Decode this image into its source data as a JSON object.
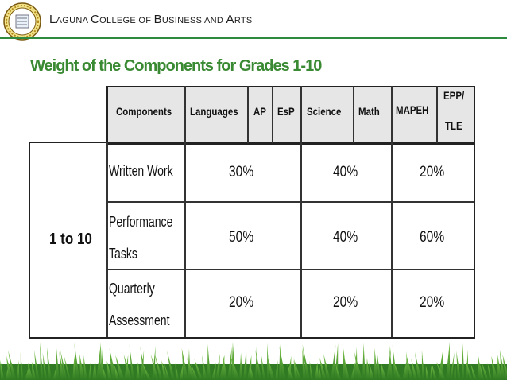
{
  "header": {
    "org_name_parts": [
      {
        "cap": "L",
        "rest": "AGUNA "
      },
      {
        "cap": "C",
        "rest": "OLLEGE OF "
      },
      {
        "cap": "B",
        "rest": "USINESS AND "
      },
      {
        "cap": "A",
        "rest": "RTS"
      }
    ],
    "logo_icon": "school-seal-icon"
  },
  "slide": {
    "title": "Weight of the Components for Grades 1-10"
  },
  "table": {
    "header": {
      "components": "Components",
      "languages": "Languages",
      "ap": "AP",
      "esp": "EsP",
      "science": "Science",
      "math": "Math",
      "mapeh": "MAPEH",
      "epp_line1": "EPP/",
      "epp_line2": "TLE"
    },
    "grade_label": "1 to 10",
    "rows": [
      {
        "label_line1": "Written Work",
        "label_line2": "",
        "group1": "30%",
        "group2": "40%",
        "group3": "20%"
      },
      {
        "label_line1": "Performance",
        "label_line2": "Tasks",
        "group1": "50%",
        "group2": "40%",
        "group3": "60%"
      },
      {
        "label_line1": "Quarterly",
        "label_line2": "Assessment",
        "group1": "20%",
        "group2": "20%",
        "group3": "20%"
      }
    ]
  },
  "colors": {
    "title_green": "#3a8a33",
    "header_rule_green": "#2e8b3e",
    "grass_green": "#4caf3a"
  },
  "decor": {
    "footer_icon": "grass-border-icon"
  }
}
